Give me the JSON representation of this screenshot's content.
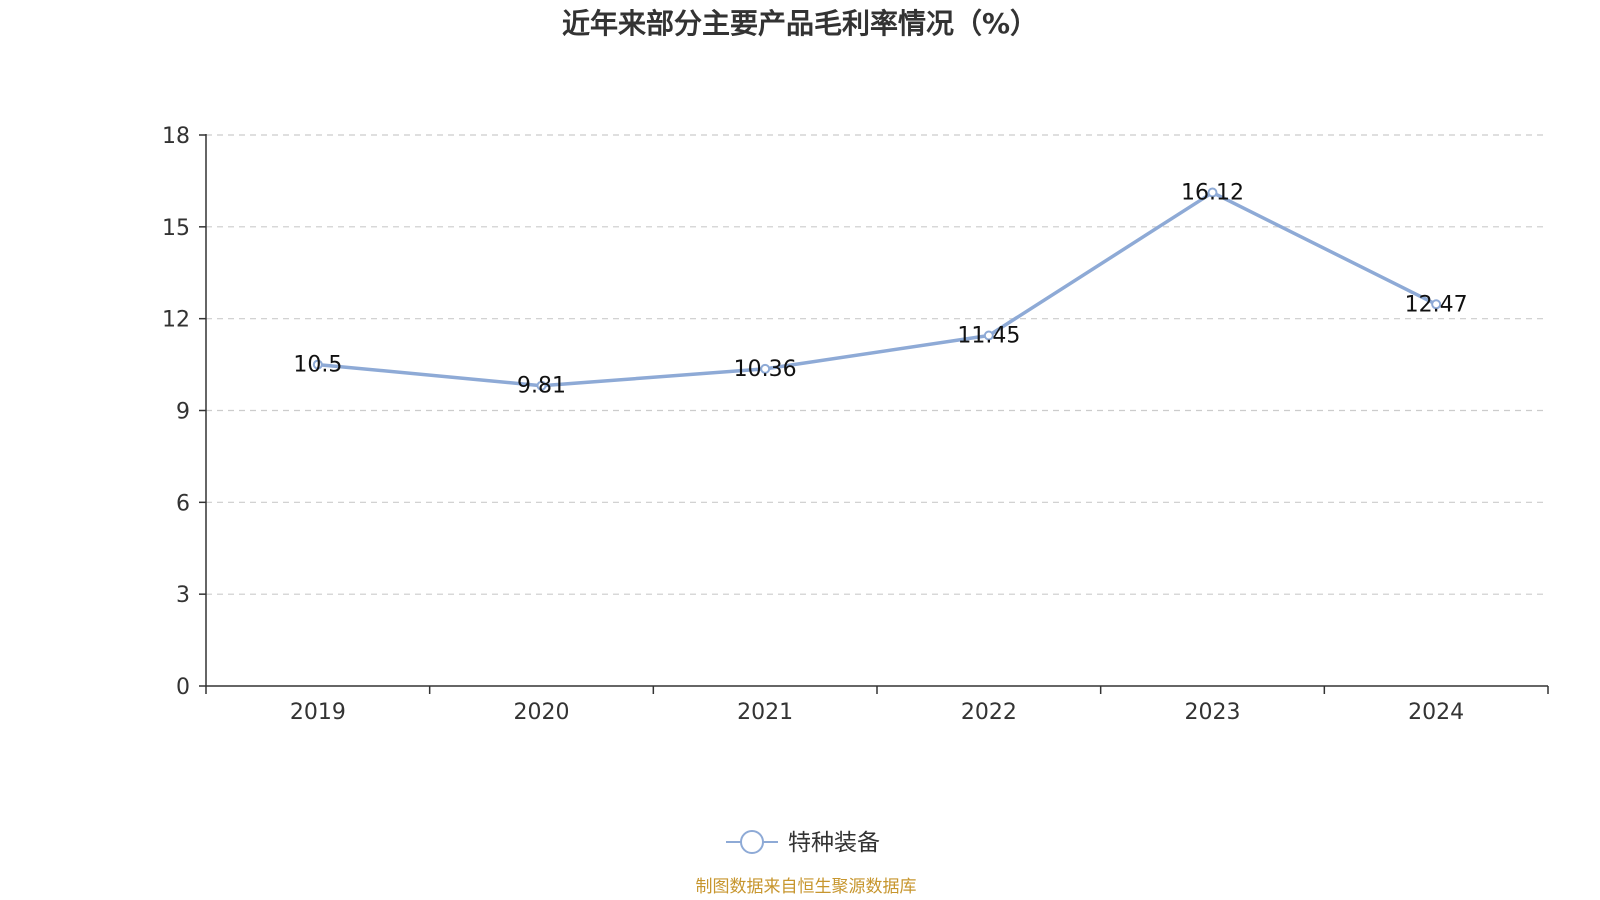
{
  "chart_data": {
    "type": "line",
    "title": "近年来部分主要产品毛利率情况（%）",
    "categories": [
      "2019",
      "2020",
      "2021",
      "2022",
      "2023",
      "2024"
    ],
    "series": [
      {
        "name": "特种装备",
        "values": [
          10.5,
          9.81,
          10.36,
          11.45,
          16.12,
          12.47
        ]
      }
    ],
    "data_labels": [
      "10.5",
      "9.81",
      "10.36",
      "11.45",
      "16.12",
      "12.47"
    ],
    "y_ticks": [
      0,
      3,
      6,
      9,
      12,
      15,
      18
    ],
    "ylim": [
      0,
      18
    ],
    "xlabel": "",
    "ylabel": "",
    "grid": true,
    "legend_position": "bottom-center",
    "source": "制图数据来自恒生聚源数据库"
  },
  "colors": {
    "series": "#8eaad6",
    "axis": "#333333",
    "grid": "#cccccc",
    "source": "#c7962e"
  }
}
